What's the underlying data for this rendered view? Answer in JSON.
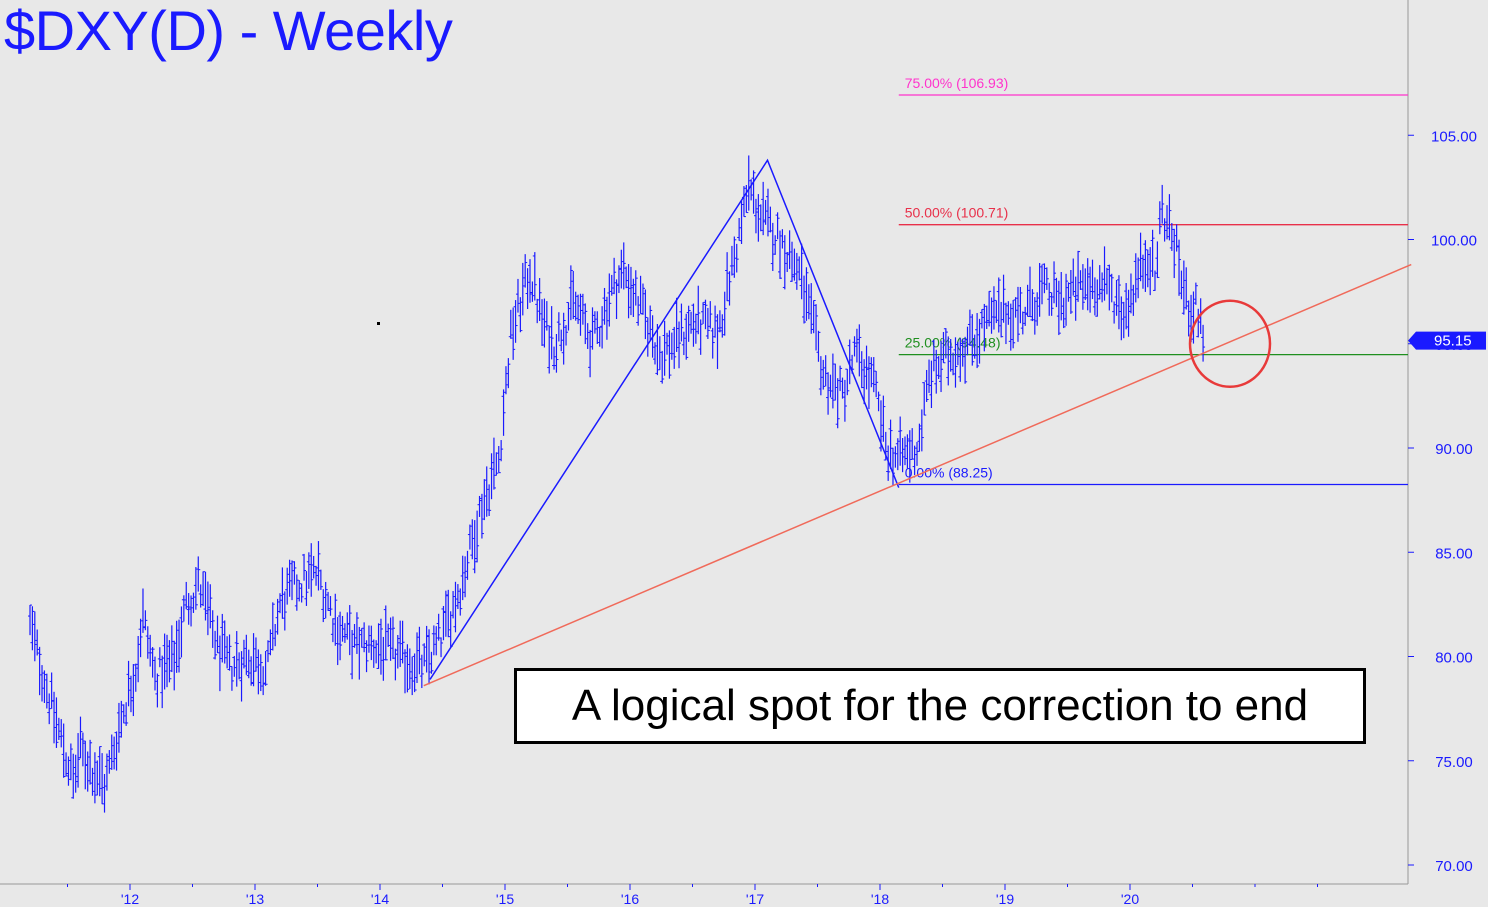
{
  "title": "$DXY(D) - Weekly",
  "annotation": "A logical spot for the correction to end",
  "last_price_label": "95.15",
  "colors": {
    "background": "#e8e8e8",
    "price": "#1a1aff",
    "fib_75": "#ff33cc",
    "fib_50": "#e8304a",
    "fib_25": "#1f8f1f",
    "fib_0": "#1a1aff",
    "trendline": "#f06a5a",
    "circle": "#e83a3a"
  },
  "chart_data": {
    "type": "bar",
    "title": "$DXY(D) - Weekly",
    "xlabel": "",
    "ylabel": "",
    "ylim": [
      69,
      112
    ],
    "x_ticks": [
      "'12",
      "'13",
      "'14",
      "'15",
      "'16",
      "'17",
      "'18",
      "'19",
      "'20"
    ],
    "y_ticks": [
      "70.00",
      "75.00",
      "80.00",
      "85.00",
      "90.00",
      "95.00",
      "100.00",
      "105.00"
    ],
    "last_price": 95.15,
    "price_path": [
      [
        2011.2,
        81.5
      ],
      [
        2011.4,
        77.0
      ],
      [
        2011.55,
        74.0
      ],
      [
        2011.6,
        75.5
      ],
      [
        2011.8,
        73.8
      ],
      [
        2011.95,
        77.5
      ],
      [
        2012.05,
        79.5
      ],
      [
        2012.1,
        82.0
      ],
      [
        2012.2,
        79.0
      ],
      [
        2012.35,
        79.8
      ],
      [
        2012.45,
        82.5
      ],
      [
        2012.55,
        83.5
      ],
      [
        2012.7,
        80.5
      ],
      [
        2012.8,
        79.5
      ],
      [
        2012.95,
        80.0
      ],
      [
        2013.1,
        79.5
      ],
      [
        2013.2,
        82.5
      ],
      [
        2013.35,
        83.5
      ],
      [
        2013.5,
        84.0
      ],
      [
        2013.65,
        81.5
      ],
      [
        2013.8,
        80.5
      ],
      [
        2013.9,
        80.5
      ],
      [
        2014.0,
        80.5
      ],
      [
        2014.15,
        80.0
      ],
      [
        2014.35,
        79.5
      ],
      [
        2014.5,
        81.0
      ],
      [
        2014.65,
        83.5
      ],
      [
        2014.8,
        87.0
      ],
      [
        2014.95,
        89.5
      ],
      [
        2015.05,
        95.5
      ],
      [
        2015.2,
        98.5
      ],
      [
        2015.3,
        96.0
      ],
      [
        2015.4,
        95.0
      ],
      [
        2015.55,
        97.0
      ],
      [
        2015.7,
        95.0
      ],
      [
        2015.85,
        97.5
      ],
      [
        2015.95,
        98.5
      ],
      [
        2016.1,
        96.5
      ],
      [
        2016.25,
        94.5
      ],
      [
        2016.35,
        95.0
      ],
      [
        2016.5,
        96.0
      ],
      [
        2016.7,
        95.5
      ],
      [
        2016.85,
        99.5
      ],
      [
        2016.95,
        102.5
      ],
      [
        2017.05,
        101.0
      ],
      [
        2017.2,
        100.0
      ],
      [
        2017.35,
        98.5
      ],
      [
        2017.45,
        96.0
      ],
      [
        2017.55,
        93.5
      ],
      [
        2017.7,
        92.5
      ],
      [
        2017.8,
        94.5
      ],
      [
        2017.95,
        93.0
      ],
      [
        2018.05,
        90.0
      ],
      [
        2018.15,
        89.5
      ],
      [
        2018.3,
        90.0
      ],
      [
        2018.4,
        93.5
      ],
      [
        2018.55,
        94.5
      ],
      [
        2018.7,
        95.0
      ],
      [
        2018.85,
        96.0
      ],
      [
        2019.0,
        96.5
      ],
      [
        2019.15,
        96.5
      ],
      [
        2019.3,
        97.5
      ],
      [
        2019.45,
        97.0
      ],
      [
        2019.55,
        97.5
      ],
      [
        2019.7,
        98.0
      ],
      [
        2019.85,
        97.5
      ],
      [
        2019.95,
        96.5
      ],
      [
        2020.05,
        98.0
      ],
      [
        2020.15,
        99.5
      ],
      [
        2020.2,
        98.0
      ],
      [
        2020.25,
        101.5
      ],
      [
        2020.35,
        100.0
      ],
      [
        2020.45,
        97.0
      ],
      [
        2020.55,
        96.5
      ],
      [
        2020.6,
        95.15
      ]
    ],
    "fib_levels": [
      {
        "label": "75.00% (106.93)",
        "value": 106.93,
        "color": "#ff33cc"
      },
      {
        "label": "50.00% (100.71)",
        "value": 100.71,
        "color": "#e8304a"
      },
      {
        "label": "25.00% (94.48)",
        "value": 94.48,
        "color": "#1f8f1f"
      },
      {
        "label": "0.00% (88.25)",
        "value": 88.25,
        "color": "#1a1aff"
      }
    ],
    "fib_start_x": 2018.15,
    "trendlines": [
      {
        "color": "#1a1aff",
        "points": [
          [
            2014.4,
            78.9
          ],
          [
            2017.1,
            103.8
          ],
          [
            2018.15,
            88.1
          ]
        ]
      },
      {
        "color": "#f06a5a",
        "points": [
          [
            2014.35,
            78.6
          ],
          [
            2022.25,
            98.8
          ]
        ]
      }
    ],
    "circle": {
      "x": 2020.8,
      "y": 95.0,
      "color": "#e83a3a"
    }
  }
}
